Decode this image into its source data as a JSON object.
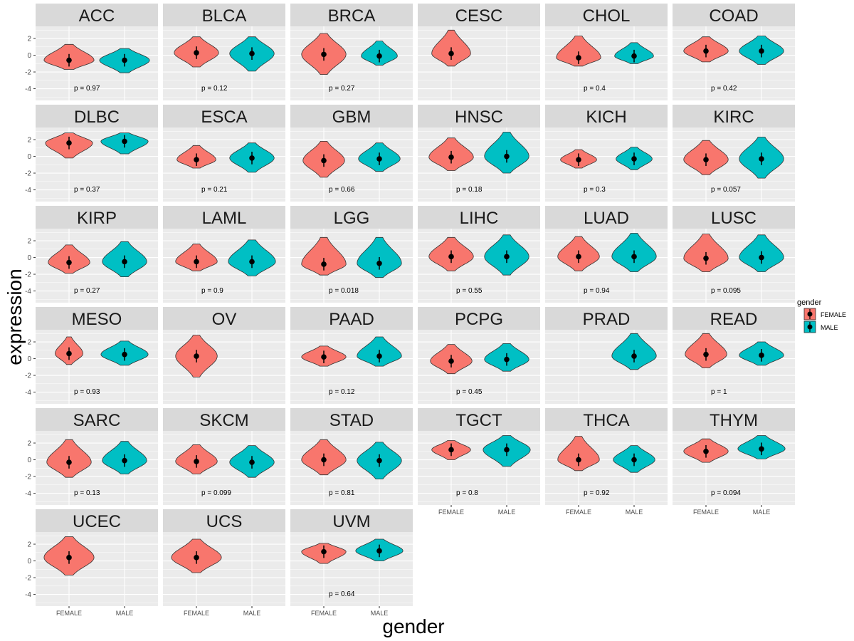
{
  "chart_data": {
    "type": "violin",
    "xlabel": "gender",
    "ylabel": "expression",
    "ylim": [
      -5.4,
      3.45
    ],
    "yticks": [
      "2",
      "0",
      "-2",
      "-4"
    ],
    "ytick_values": [
      2,
      0,
      -2,
      -4
    ],
    "categories": [
      "FEMALE",
      "MALE"
    ],
    "legend": {
      "title": "gender",
      "placement": "right",
      "entries": [
        {
          "label": "FEMALE",
          "color": "#F8766D"
        },
        {
          "label": "MALE",
          "color": "#00BFC4"
        }
      ]
    },
    "panels": [
      {
        "name": "ACC",
        "p": "p = 0.97",
        "F": [
          -0.6,
          -1.7,
          1.3,
          0.9
        ],
        "M": [
          -0.6,
          -2.1,
          0.8,
          0.9
        ]
      },
      {
        "name": "BLCA",
        "p": "p = 0.12",
        "F": [
          0.3,
          -1.4,
          2.2,
          0.8
        ],
        "M": [
          0.2,
          -1.9,
          2.2,
          0.8
        ]
      },
      {
        "name": "BRCA",
        "p": "p = 0.27",
        "F": [
          0.1,
          -2.3,
          2.6,
          0.8
        ],
        "M": [
          -0.1,
          -1.2,
          1.7,
          0.65
        ]
      },
      {
        "name": "CESC",
        "p": "",
        "F": [
          0.2,
          -1.3,
          3.0,
          0.7
        ],
        "M": null
      },
      {
        "name": "CHOL",
        "p": "p = 0.4",
        "F": [
          -0.3,
          -1.3,
          2.3,
          0.8
        ],
        "M": [
          -0.1,
          -1.0,
          1.5,
          0.7
        ]
      },
      {
        "name": "COAD",
        "p": "p = 0.42",
        "F": [
          0.5,
          -0.8,
          2.2,
          0.8
        ],
        "M": [
          0.5,
          -1.1,
          2.3,
          0.8
        ]
      },
      {
        "name": "DLBC",
        "p": "p = 0.37",
        "F": [
          1.6,
          -0.2,
          2.8,
          0.85
        ],
        "M": [
          1.8,
          0.3,
          2.8,
          0.85
        ]
      },
      {
        "name": "ESCA",
        "p": "p = 0.21",
        "F": [
          -0.4,
          -1.4,
          1.3,
          0.7
        ],
        "M": [
          -0.2,
          -1.9,
          1.6,
          0.8
        ]
      },
      {
        "name": "GBM",
        "p": "p = 0.66",
        "F": [
          -0.5,
          -2.5,
          1.8,
          0.75
        ],
        "M": [
          -0.3,
          -1.8,
          1.6,
          0.75
        ]
      },
      {
        "name": "HNSC",
        "p": "p = 0.18",
        "F": [
          -0.1,
          -1.7,
          2.2,
          0.8
        ],
        "M": [
          0.0,
          -2.0,
          2.9,
          0.8
        ]
      },
      {
        "name": "KICH",
        "p": "p = 0.3",
        "F": [
          -0.4,
          -1.4,
          0.8,
          0.65
        ],
        "M": [
          -0.3,
          -1.6,
          1.1,
          0.65
        ]
      },
      {
        "name": "KIRC",
        "p": "p = 0.057",
        "F": [
          -0.4,
          -2.2,
          1.9,
          0.8
        ],
        "M": [
          -0.3,
          -2.6,
          2.3,
          0.8
        ]
      },
      {
        "name": "KIRP",
        "p": "p = 0.27",
        "F": [
          -0.6,
          -1.9,
          1.5,
          0.75
        ],
        "M": [
          -0.5,
          -2.3,
          1.9,
          0.8
        ]
      },
      {
        "name": "LAML",
        "p": "p = 0.9",
        "F": [
          -0.5,
          -1.6,
          1.6,
          0.75
        ],
        "M": [
          -0.5,
          -2.2,
          2.1,
          0.85
        ]
      },
      {
        "name": "LGG",
        "p": "p = 0.018",
        "F": [
          -0.8,
          -2.1,
          2.4,
          0.8
        ],
        "M": [
          -0.7,
          -2.4,
          2.4,
          0.8
        ]
      },
      {
        "name": "LIHC",
        "p": "p = 0.55",
        "F": [
          0.1,
          -1.6,
          2.4,
          0.8
        ],
        "M": [
          0.1,
          -2.1,
          2.7,
          0.8
        ]
      },
      {
        "name": "LUAD",
        "p": "p = 0.94",
        "F": [
          0.1,
          -1.6,
          2.5,
          0.75
        ],
        "M": [
          0.1,
          -1.7,
          2.9,
          0.8
        ]
      },
      {
        "name": "LUSC",
        "p": "p = 0.095",
        "F": [
          -0.1,
          -1.7,
          2.8,
          0.8
        ],
        "M": [
          0.0,
          -1.7,
          2.7,
          0.8
        ]
      },
      {
        "name": "MESO",
        "p": "p = 0.93",
        "F": [
          0.6,
          -0.7,
          2.6,
          0.5
        ],
        "M": [
          0.5,
          -0.8,
          2.1,
          0.85
        ]
      },
      {
        "name": "OV",
        "p": "",
        "F": [
          0.3,
          -2.2,
          2.8,
          0.75
        ],
        "M": null
      },
      {
        "name": "PAAD",
        "p": "p = 0.12",
        "F": [
          0.2,
          -0.9,
          1.5,
          0.8
        ],
        "M": [
          0.3,
          -0.9,
          2.6,
          0.8
        ]
      },
      {
        "name": "PCPG",
        "p": "p = 0.45",
        "F": [
          -0.3,
          -1.8,
          1.7,
          0.75
        ],
        "M": [
          -0.1,
          -1.5,
          1.8,
          0.8
        ]
      },
      {
        "name": "PRAD",
        "p": "",
        "F": null,
        "M": [
          0.3,
          -1.3,
          3.0,
          0.8
        ]
      },
      {
        "name": "READ",
        "p": "p = 1",
        "F": [
          0.5,
          -1.1,
          3.0,
          0.75
        ],
        "M": [
          0.4,
          -0.8,
          2.0,
          0.8
        ]
      },
      {
        "name": "SARC",
        "p": "p = 0.13",
        "F": [
          -0.3,
          -2.1,
          2.4,
          0.8
        ],
        "M": [
          -0.1,
          -1.7,
          2.2,
          0.8
        ]
      },
      {
        "name": "SKCM",
        "p": "p = 0.099",
        "F": [
          -0.2,
          -1.7,
          1.8,
          0.75
        ],
        "M": [
          -0.3,
          -2.1,
          1.7,
          0.8
        ]
      },
      {
        "name": "STAD",
        "p": "p = 0.81",
        "F": [
          0.0,
          -1.8,
          2.4,
          0.8
        ],
        "M": [
          -0.1,
          -2.3,
          2.1,
          0.8
        ]
      },
      {
        "name": "TGCT",
        "p": "p = 0.8",
        "F": [
          1.2,
          0.0,
          2.3,
          0.7
        ],
        "M": [
          1.2,
          -0.8,
          2.9,
          0.85
        ]
      },
      {
        "name": "THCA",
        "p": "p = 0.92",
        "F": [
          0.0,
          -1.3,
          2.8,
          0.75
        ],
        "M": [
          0.0,
          -1.5,
          1.7,
          0.75
        ]
      },
      {
        "name": "THYM",
        "p": "p = 0.094",
        "F": [
          1.0,
          -0.3,
          2.5,
          0.8
        ],
        "M": [
          1.3,
          0.1,
          2.9,
          0.85
        ]
      },
      {
        "name": "UCEC",
        "p": "",
        "F": [
          0.4,
          -1.7,
          2.9,
          0.9
        ],
        "M": null
      },
      {
        "name": "UCS",
        "p": "",
        "F": [
          0.4,
          -1.4,
          2.6,
          0.9
        ],
        "M": null
      },
      {
        "name": "UVM",
        "p": "p = 0.64",
        "F": [
          1.1,
          -0.3,
          2.1,
          0.8
        ],
        "M": [
          1.2,
          0.0,
          2.6,
          0.85
        ]
      }
    ]
  }
}
